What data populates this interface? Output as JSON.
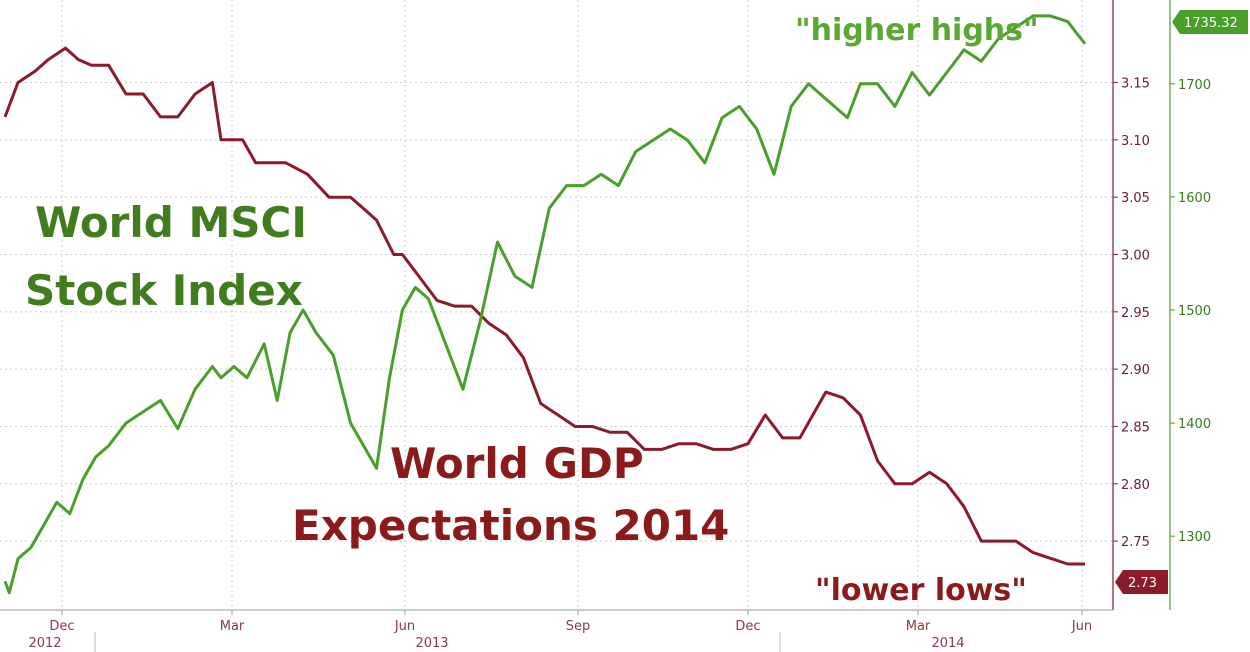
{
  "chart_data": {
    "type": "line",
    "x_tick_labels": [
      "Dec",
      "Mar",
      "Jun",
      "Sep",
      "Dec",
      "Mar",
      "Jun"
    ],
    "year_labels": [
      "2012",
      "2013",
      "2014"
    ],
    "y_left_ticks": [
      2.75,
      2.8,
      2.85,
      2.9,
      2.95,
      3.0,
      3.05,
      3.1,
      3.15
    ],
    "y_left_tick_labels": [
      "2.75",
      "2.80",
      "2.85",
      "2.90",
      "2.95",
      "3.00",
      "3.05",
      "3.10",
      "3.15"
    ],
    "y_left_range": [
      2.703,
      3.215
    ],
    "y_right_ticks": [
      1300,
      1400,
      1500,
      1600,
      1700
    ],
    "y_right_tick_labels": [
      "1300",
      "1400",
      "1500",
      "1600",
      "1700"
    ],
    "y_right_range": [
      1248,
      1767
    ],
    "x_range": [
      0,
      25
    ],
    "annotations": {
      "msci_line1": "World MSCI",
      "msci_line2": "Stock Index",
      "gdp_line1": "World GDP",
      "gdp_line2": "Expectations 2014",
      "higher_highs": "\"higher highs\"",
      "lower_lows": "\"lower lows\""
    },
    "last_values": {
      "msci": "1735.32",
      "gdp": "2.73"
    },
    "colors": {
      "msci": "#4a9e2a",
      "gdp": "#8b1a2b",
      "msci_text": "#3f7d1f",
      "gdp_text": "#8b1a1a",
      "grid": "#cccccc"
    },
    "series": [
      {
        "key": "gdp",
        "axis": "left",
        "x": [
          0,
          0.3,
          0.7,
          1.0,
          1.4,
          1.7,
          2.0,
          2.4,
          2.8,
          3.2,
          3.6,
          4.0,
          4.4,
          4.8,
          5.0,
          5.5,
          5.8,
          6.0,
          6.5,
          7.0,
          7.5,
          8.0,
          8.3,
          8.6,
          9.0,
          9.2,
          9.6,
          10.0,
          10.4,
          10.8,
          11.2,
          11.6,
          12.0,
          12.4,
          12.8,
          13.2,
          13.6,
          14.0,
          14.4,
          14.8,
          15.2,
          15.6,
          16.0,
          16.4,
          16.8,
          17.2,
          17.6,
          18.0,
          18.4,
          18.7,
          19.0,
          19.4,
          19.8,
          20.2,
          20.6,
          21.0,
          21.4,
          21.8,
          22.2,
          22.6,
          23.0,
          23.4,
          23.8,
          24.2,
          24.6,
          25.0
        ],
        "y": [
          3.12,
          3.15,
          3.16,
          3.17,
          3.18,
          3.17,
          3.165,
          3.165,
          3.14,
          3.14,
          3.12,
          3.12,
          3.14,
          3.15,
          3.1,
          3.1,
          3.08,
          3.08,
          3.08,
          3.07,
          3.05,
          3.05,
          3.04,
          3.03,
          3.0,
          3.0,
          2.98,
          2.96,
          2.955,
          2.955,
          2.94,
          2.93,
          2.91,
          2.87,
          2.86,
          2.85,
          2.85,
          2.845,
          2.845,
          2.83,
          2.83,
          2.835,
          2.835,
          2.83,
          2.83,
          2.835,
          2.86,
          2.84,
          2.84,
          2.86,
          2.88,
          2.875,
          2.86,
          2.82,
          2.8,
          2.8,
          2.81,
          2.8,
          2.78,
          2.75,
          2.75,
          2.75,
          2.74,
          2.735,
          2.73,
          2.73
        ]
      },
      {
        "key": "msci",
        "axis": "right",
        "x": [
          0,
          0.1,
          0.3,
          0.6,
          0.9,
          1.2,
          1.5,
          1.8,
          2.1,
          2.4,
          2.8,
          3.2,
          3.6,
          4.0,
          4.4,
          4.8,
          5.0,
          5.3,
          5.6,
          6.0,
          6.3,
          6.6,
          6.9,
          7.2,
          7.6,
          8.0,
          8.3,
          8.6,
          8.9,
          9.2,
          9.5,
          9.8,
          10.2,
          10.6,
          11.0,
          11.4,
          11.8,
          12.2,
          12.6,
          13.0,
          13.4,
          13.8,
          14.2,
          14.6,
          15.0,
          15.4,
          15.8,
          16.2,
          16.6,
          17.0,
          17.4,
          17.8,
          18.2,
          18.6,
          18.9,
          19.2,
          19.5,
          19.8,
          20.2,
          20.6,
          21.0,
          21.4,
          21.8,
          22.2,
          22.6,
          23.0,
          23.4,
          23.8,
          24.2,
          24.6,
          24.8,
          25.0
        ],
        "y": [
          1260,
          1250,
          1280,
          1290,
          1310,
          1330,
          1320,
          1350,
          1370,
          1380,
          1400,
          1410,
          1420,
          1395,
          1430,
          1450,
          1440,
          1450,
          1440,
          1470,
          1420,
          1480,
          1500,
          1480,
          1460,
          1400,
          1380,
          1360,
          1440,
          1500,
          1520,
          1510,
          1470,
          1430,
          1490,
          1560,
          1530,
          1520,
          1590,
          1610,
          1610,
          1620,
          1610,
          1640,
          1650,
          1660,
          1650,
          1630,
          1670,
          1680,
          1660,
          1620,
          1680,
          1700,
          1690,
          1680,
          1670,
          1700,
          1700,
          1680,
          1710,
          1690,
          1710,
          1730,
          1720,
          1740,
          1750,
          1760,
          1760,
          1755,
          1745,
          1735.32
        ]
      }
    ]
  }
}
